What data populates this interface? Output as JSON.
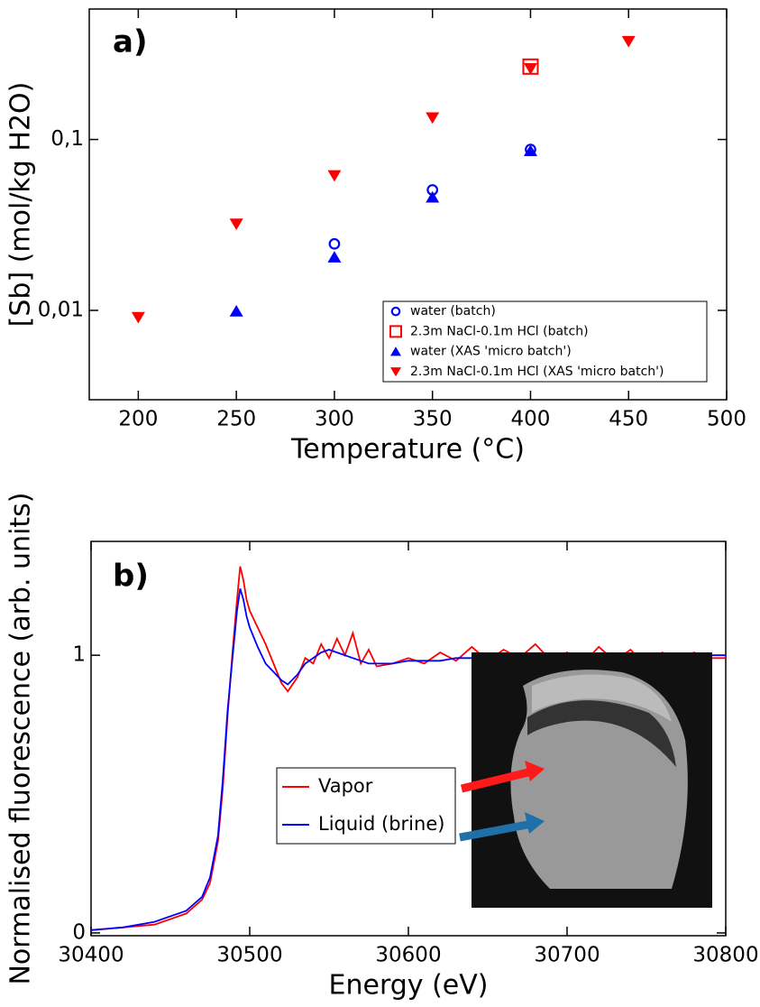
{
  "chart_data": [
    {
      "type": "scatter",
      "panel": "a)",
      "xlabel": "Temperature (°C)",
      "ylabel": "[Sb] (mol/kg H2O)",
      "xlim": [
        175,
        500
      ],
      "xticks": [
        200,
        250,
        300,
        350,
        400,
        450,
        500
      ],
      "ylim": [
        0.003,
        0.58
      ],
      "ylog": true,
      "yticks": [
        {
          "value": 0.01,
          "label": "0,01"
        },
        {
          "value": 0.1,
          "label": "0,1"
        }
      ],
      "legend": "lower right",
      "series": [
        {
          "name": "water (batch)",
          "color": "#0000ff",
          "marker": "circle-open",
          "x": [
            300,
            350,
            400
          ],
          "values": [
            0.0245,
            0.0507,
            0.0875
          ]
        },
        {
          "name": "2.3m NaCl-0.1m HCl (batch)",
          "color": "#ff0000",
          "marker": "square-open",
          "x": [
            400
          ],
          "values": [
            0.267
          ]
        },
        {
          "name": "water (XAS 'micro batch')",
          "color": "#0000ff",
          "marker": "triangle-up",
          "x": [
            250,
            300,
            350,
            400
          ],
          "values": [
            0.0099,
            0.0205,
            0.046,
            0.086
          ]
        },
        {
          "name": "2.3m NaCl-0.1m HCl (XAS 'micro batch')",
          "color": "#ff0000",
          "marker": "triangle-down",
          "x": [
            200,
            250,
            300,
            350,
            400,
            450
          ],
          "values": [
            0.0091,
            0.032,
            0.0615,
            0.134,
            0.26,
            0.375
          ]
        }
      ]
    },
    {
      "type": "line",
      "panel": "b)",
      "xlabel": "Energy (eV)",
      "ylabel": "Normalised fluorescence (arb. units)",
      "xlim": [
        30400,
        30800
      ],
      "xticks": [
        30400,
        30500,
        30600,
        30700,
        30800
      ],
      "ylim": [
        -0.01,
        1.41
      ],
      "yticks": [
        0,
        1
      ],
      "x": [
        30400,
        30420,
        30440,
        30460,
        30470,
        30475,
        30480,
        30483,
        30486,
        30489,
        30492,
        30494,
        30496,
        30498,
        30500,
        30505,
        30510,
        30515,
        30520,
        30524,
        30530,
        30535,
        30540,
        30545,
        30550,
        30555,
        30560,
        30565,
        30570,
        30575,
        30580,
        30590,
        30600,
        30610,
        30620,
        30630,
        30640,
        30650,
        30660,
        30670,
        30680,
        30690,
        30700,
        30710,
        30720,
        30730,
        30740,
        30750,
        30760,
        30770,
        30780,
        30790,
        30800
      ],
      "series": [
        {
          "name": "Vapor",
          "color": "#ff0000",
          "values": [
            0.01,
            0.02,
            0.03,
            0.07,
            0.12,
            0.18,
            0.33,
            0.52,
            0.78,
            1.0,
            1.2,
            1.32,
            1.27,
            1.2,
            1.16,
            1.1,
            1.04,
            0.97,
            0.9,
            0.87,
            0.92,
            0.99,
            0.97,
            1.04,
            0.99,
            1.06,
            1.0,
            1.08,
            0.97,
            1.02,
            0.96,
            0.97,
            0.99,
            0.97,
            1.01,
            0.98,
            1.03,
            0.98,
            1.02,
            0.99,
            1.04,
            0.98,
            1.01,
            0.97,
            1.03,
            0.98,
            1.02,
            0.96,
            1.01,
            0.98,
            1.01,
            0.99,
            0.99
          ]
        },
        {
          "name": "Liquid (brine)",
          "color": "#0000ff",
          "values": [
            0.01,
            0.02,
            0.04,
            0.08,
            0.13,
            0.2,
            0.35,
            0.55,
            0.8,
            0.98,
            1.16,
            1.24,
            1.2,
            1.14,
            1.1,
            1.03,
            0.97,
            0.94,
            0.91,
            0.895,
            0.93,
            0.97,
            0.99,
            1.01,
            1.02,
            1.01,
            1.0,
            0.99,
            0.98,
            0.97,
            0.97,
            0.97,
            0.98,
            0.98,
            0.98,
            0.99,
            0.99,
            0.99,
            0.99,
            1.0,
            1.0,
            1.0,
            1.0,
            1.0,
            1.0,
            1.0,
            1.0,
            1.0,
            1.0,
            1.0,
            1.0,
            1.0,
            1.0
          ]
        }
      ]
    }
  ]
}
